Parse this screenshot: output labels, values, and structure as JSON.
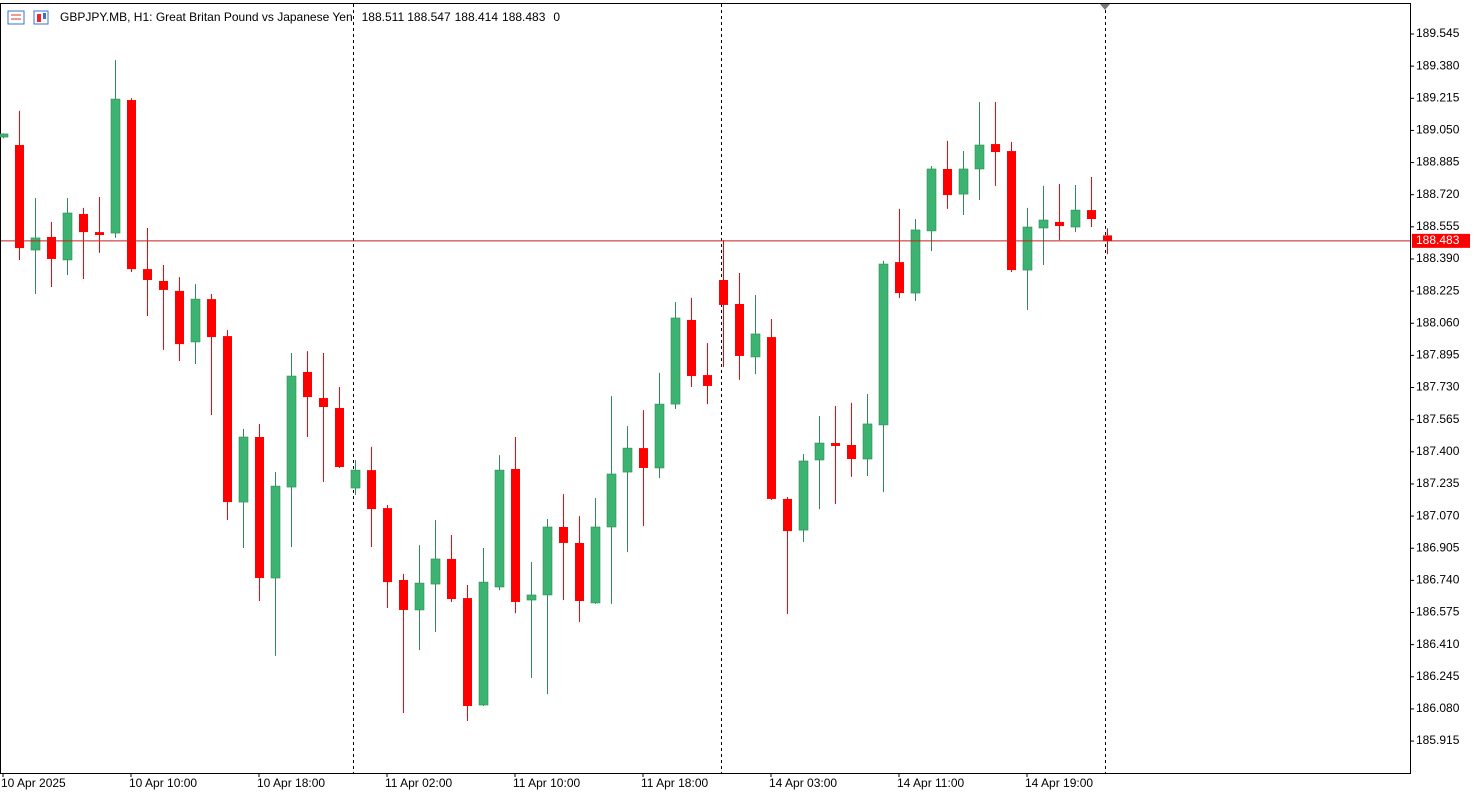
{
  "chart_data": {
    "type": "candlestick",
    "title": "GBPJPY.MB, H1:  Great Britan Pound vs Japanese Yen",
    "header_suffix": "0",
    "categories": [
      "10 Apr 2025",
      null,
      null,
      null,
      null,
      null,
      null,
      null,
      "10 Apr 10:00",
      null,
      null,
      null,
      null,
      null,
      null,
      null,
      "10 Apr 18:00",
      null,
      null,
      null,
      null,
      null,
      null,
      null,
      "11 Apr 02:00",
      null,
      null,
      null,
      null,
      null,
      null,
      null,
      "11 Apr 10:00",
      null,
      null,
      null,
      null,
      null,
      null,
      null,
      "11 Apr 18:00",
      null,
      null,
      null,
      null,
      null,
      null,
      null,
      "14 Apr 03:00",
      null,
      null,
      null,
      null,
      null,
      null,
      null,
      "14 Apr 11:00",
      null,
      null,
      null,
      null,
      null,
      null,
      null,
      "14 Apr 19:00",
      null,
      null,
      null,
      null,
      null
    ],
    "open": [
      189.016,
      188.975,
      188.436,
      188.503,
      188.385,
      188.621,
      188.528,
      188.523,
      189.206,
      188.338,
      188.277,
      188.226,
      187.964,
      188.184,
      187.994,
      187.142,
      187.476,
      186.752,
      187.219,
      187.81,
      187.676,
      187.625,
      187.214,
      187.306,
      187.111,
      186.742,
      186.588,
      186.721,
      186.85,
      186.649,
      186.1,
      186.706,
      187.312,
      186.639,
      186.665,
      187.014,
      186.932,
      186.624,
      187.014,
      187.296,
      187.419,
      187.317,
      187.645,
      188.077,
      187.794,
      188.282,
      188.159,
      187.887,
      187.989,
      187.158,
      186.998,
      187.358,
      187.445,
      187.435,
      187.363,
      187.538,
      188.374,
      188.215,
      188.534,
      188.852,
      188.723,
      188.852,
      188.98,
      188.944,
      188.333,
      188.549,
      188.58,
      188.554,
      188.641,
      188.511
    ],
    "high": [
      189.035,
      189.15,
      188.703,
      188.58,
      188.703,
      188.652,
      188.708,
      189.411,
      189.216,
      188.549,
      188.359,
      188.297,
      188.261,
      188.21,
      188.025,
      187.517,
      187.543,
      187.296,
      187.907,
      187.917,
      187.907,
      187.733,
      187.358,
      187.425,
      187.127,
      186.773,
      186.921,
      187.05,
      186.973,
      186.716,
      186.906,
      187.383,
      187.476,
      186.834,
      187.055,
      187.183,
      187.07,
      187.163,
      187.686,
      187.532,
      187.614,
      187.805,
      188.169,
      188.19,
      187.958,
      188.487,
      188.318,
      188.205,
      188.082,
      187.168,
      187.389,
      187.584,
      187.635,
      187.651,
      187.697,
      188.38,
      188.647,
      188.595,
      188.867,
      188.996,
      188.944,
      189.196,
      189.196,
      188.991,
      188.652,
      188.765,
      188.775,
      188.77,
      188.811,
      188.547
    ],
    "low": [
      189.01,
      188.385,
      188.21,
      188.246,
      188.308,
      188.287,
      188.421,
      188.498,
      188.323,
      188.097,
      187.923,
      187.866,
      187.851,
      187.589,
      187.05,
      186.906,
      186.634,
      186.352,
      186.911,
      187.476,
      187.245,
      187.317,
      187.178,
      186.911,
      186.598,
      186.059,
      186.382,
      186.475,
      186.629,
      186.018,
      186.095,
      186.69,
      186.572,
      186.239,
      186.156,
      186.639,
      186.526,
      186.619,
      186.619,
      186.885,
      187.019,
      187.265,
      187.62,
      187.733,
      187.645,
      187.835,
      187.769,
      187.799,
      187.153,
      186.567,
      186.937,
      187.106,
      187.132,
      187.271,
      187.276,
      187.193,
      188.19,
      188.174,
      188.431,
      188.647,
      188.616,
      188.693,
      188.765,
      188.323,
      188.128,
      188.359,
      188.487,
      188.528,
      188.554,
      188.414
    ],
    "close": [
      189.032,
      188.446,
      188.498,
      188.39,
      188.626,
      188.528,
      188.513,
      189.211,
      188.338,
      188.282,
      188.231,
      187.953,
      188.184,
      187.989,
      187.142,
      187.476,
      186.752,
      187.224,
      187.789,
      187.681,
      187.63,
      187.322,
      187.306,
      187.106,
      186.731,
      186.588,
      186.726,
      186.85,
      186.644,
      186.095,
      186.731,
      187.306,
      186.629,
      186.665,
      187.014,
      186.932,
      186.634,
      187.014,
      187.286,
      187.419,
      187.317,
      187.645,
      188.087,
      187.789,
      187.738,
      188.154,
      187.892,
      188.005,
      187.158,
      186.993,
      187.353,
      187.445,
      187.43,
      187.363,
      187.543,
      188.364,
      188.215,
      188.539,
      188.852,
      188.718,
      188.852,
      188.975,
      188.939,
      188.333,
      188.554,
      188.59,
      188.559,
      188.641,
      188.595,
      188.483
    ],
    "up_color": "#3cb371",
    "down_color": "#ff0000",
    "price_line_color": "#c81e1e",
    "ylim": [
      185.751,
      189.699
    ],
    "yticks": [
      189.545,
      {
        "value": 189.38,
        "label": "189.380"
      },
      189.215,
      {
        "value": 189.05,
        "label": "189.050"
      },
      188.885,
      {
        "value": 188.72,
        "label": "188.720"
      },
      188.555,
      {
        "value": 188.39,
        "label": "188.390"
      },
      188.225,
      {
        "value": 188.06,
        "label": "188.060"
      },
      187.895,
      {
        "value": 187.73,
        "label": "187.730"
      },
      187.565,
      {
        "value": 187.4,
        "label": "187.400"
      },
      187.235,
      {
        "value": 187.07,
        "label": "187.070"
      },
      186.905,
      {
        "value": 186.74,
        "label": "186.740"
      },
      186.575,
      {
        "value": 186.41,
        "label": "186.410"
      },
      186.245,
      {
        "value": 186.08,
        "label": "186.080"
      },
      185.915
    ]
  }
}
